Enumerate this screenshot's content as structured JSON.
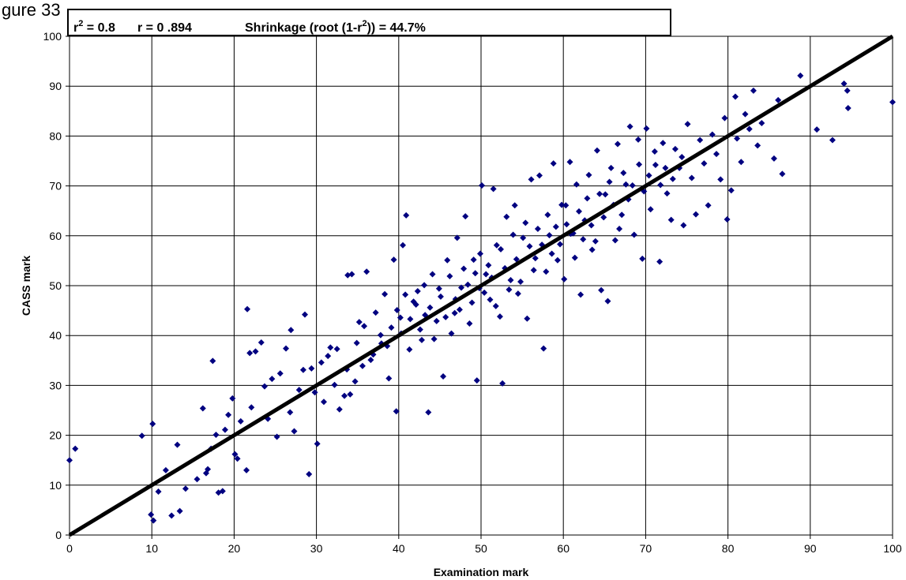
{
  "page": {
    "corner_text": "gure 33"
  },
  "chart_data": {
    "type": "scatter",
    "xlabel": "Examination mark",
    "ylabel": "CASS mark",
    "xlim": [
      0,
      100
    ],
    "ylim": [
      0,
      100
    ],
    "xticks": [
      0,
      10,
      20,
      30,
      40,
      50,
      60,
      70,
      80,
      90,
      100
    ],
    "yticks": [
      0,
      10,
      20,
      30,
      40,
      50,
      60,
      70,
      80,
      90,
      100
    ],
    "grid": true,
    "legend": "none",
    "annotation": {
      "r2_label": "r",
      "r2_exp": "2",
      "r2_value": " = 0.8",
      "r_text": "r = 0 .894",
      "shrink_pre": "Shrinkage (root (1-r",
      "shrink_exp": "2",
      "shrink_post": ")) = 44.7%"
    },
    "reference_line": {
      "from": [
        0,
        0
      ],
      "to": [
        100,
        100
      ],
      "color": "#000000"
    },
    "marker_color": "#000080",
    "series": [
      {
        "points": [
          [
            0,
            15
          ],
          [
            0.7,
            17.3
          ],
          [
            8.8,
            19.9
          ],
          [
            9.9,
            4.1
          ],
          [
            10.1,
            22.3
          ],
          [
            10.2,
            2.9
          ],
          [
            10.8,
            8.7
          ],
          [
            11.7,
            13
          ],
          [
            12.4,
            3.9
          ],
          [
            13.1,
            18.1
          ],
          [
            13.4,
            4.8
          ],
          [
            14.1,
            9.3
          ],
          [
            15.5,
            11.2
          ],
          [
            16.2,
            25.4
          ],
          [
            16.6,
            12.4
          ],
          [
            16.8,
            13.2
          ],
          [
            17.2,
            17.3
          ],
          [
            17.4,
            34.9
          ],
          [
            17.8,
            20.1
          ],
          [
            18.1,
            8.5
          ],
          [
            18.6,
            8.8
          ],
          [
            18.9,
            21.1
          ],
          [
            19.3,
            24.1
          ],
          [
            19.8,
            27.4
          ],
          [
            20.1,
            16.2
          ],
          [
            20.4,
            15.3
          ],
          [
            20.8,
            22.8
          ],
          [
            21.5,
            13
          ],
          [
            21.6,
            45.3
          ],
          [
            21.9,
            36.5
          ],
          [
            22.6,
            36.8
          ],
          [
            23.3,
            38.6
          ],
          [
            24.1,
            23.3
          ],
          [
            24.6,
            31.3
          ],
          [
            25.2,
            19.7
          ],
          [
            26.3,
            37.4
          ],
          [
            26.9,
            41.1
          ],
          [
            27.3,
            20.8
          ],
          [
            28.4,
            33.1
          ],
          [
            28.6,
            44.2
          ],
          [
            29.1,
            12.2
          ],
          [
            29.8,
            28.6
          ],
          [
            30.1,
            18.3
          ],
          [
            30.6,
            34.6
          ],
          [
            31.7,
            37.6
          ],
          [
            32.2,
            30.1
          ],
          [
            32.8,
            25.2
          ],
          [
            33.4,
            27.9
          ],
          [
            33.8,
            52.1
          ],
          [
            34.3,
            52.3
          ],
          [
            34.7,
            30.8
          ],
          [
            35.2,
            42.7
          ],
          [
            35.6,
            33.9
          ],
          [
            36.1,
            52.8
          ],
          [
            36.9,
            36.2
          ],
          [
            37.8,
            40.1
          ],
          [
            38.3,
            48.3
          ],
          [
            38.8,
            31.4
          ],
          [
            39.4,
            55.2
          ],
          [
            39.7,
            24.8
          ],
          [
            40.2,
            43.6
          ],
          [
            40.5,
            58.1
          ],
          [
            40.9,
            64.1
          ],
          [
            41.3,
            37.2
          ],
          [
            41.8,
            46.8
          ],
          [
            42.3,
            48.9
          ],
          [
            42.8,
            39.1
          ],
          [
            43.2,
            44.1
          ],
          [
            43.6,
            24.6
          ],
          [
            44.1,
            52.3
          ],
          [
            44.6,
            42.9
          ],
          [
            45.1,
            47.8
          ],
          [
            45.4,
            31.8
          ],
          [
            45.9,
            55.1
          ],
          [
            46.4,
            40.4
          ],
          [
            46.8,
            44.5
          ],
          [
            47.1,
            59.6
          ],
          [
            47.6,
            49.6
          ],
          [
            48.1,
            63.9
          ],
          [
            48.6,
            42.4
          ],
          [
            49.1,
            55.2
          ],
          [
            49.5,
            31
          ],
          [
            49.8,
            49.5
          ],
          [
            50.1,
            70.1
          ],
          [
            50.6,
            52.3
          ],
          [
            51.1,
            47.2
          ],
          [
            51.5,
            69.4
          ],
          [
            51.9,
            58.1
          ],
          [
            52.3,
            43.8
          ],
          [
            52.6,
            30.4
          ],
          [
            53.1,
            63.8
          ],
          [
            53.6,
            51.1
          ],
          [
            54.1,
            66.1
          ],
          [
            54.5,
            48.4
          ],
          [
            55.1,
            59.6
          ],
          [
            55.6,
            43.4
          ],
          [
            56.1,
            71.3
          ],
          [
            56.6,
            55.5
          ],
          [
            57.1,
            72.1
          ],
          [
            57.6,
            37.4
          ],
          [
            57.9,
            52.8
          ],
          [
            58.3,
            60.1
          ],
          [
            58.8,
            74.5
          ],
          [
            59.3,
            55.1
          ],
          [
            59.8,
            66.2
          ],
          [
            60.1,
            51.3
          ],
          [
            60.4,
            62.3
          ],
          [
            60.8,
            74.8
          ],
          [
            61.2,
            60.5
          ],
          [
            61.6,
            70.3
          ],
          [
            62.1,
            48.2
          ],
          [
            62.6,
            63.1
          ],
          [
            63.1,
            72.2
          ],
          [
            63.5,
            57.2
          ],
          [
            64.1,
            77.1
          ],
          [
            64.6,
            49.1
          ],
          [
            65.1,
            68.3
          ],
          [
            65.4,
            46.9
          ],
          [
            65.8,
            73.6
          ],
          [
            66.3,
            59.1
          ],
          [
            66.6,
            78.4
          ],
          [
            67.1,
            64.2
          ],
          [
            67.6,
            70.3
          ],
          [
            68.1,
            81.9
          ],
          [
            68.6,
            60.2
          ],
          [
            69.1,
            79.3
          ],
          [
            69.6,
            55.4
          ],
          [
            70.1,
            81.5
          ],
          [
            70.6,
            65.3
          ],
          [
            71.2,
            74.2
          ],
          [
            71.7,
            54.8
          ],
          [
            72.1,
            78.6
          ],
          [
            72.6,
            68.5
          ],
          [
            73.1,
            63.2
          ],
          [
            73.6,
            77.4
          ],
          [
            74.1,
            73.6
          ],
          [
            74.6,
            62.1
          ],
          [
            75.1,
            82.4
          ],
          [
            75.6,
            71.6
          ],
          [
            76.1,
            64.3
          ],
          [
            76.6,
            79.2
          ],
          [
            77.1,
            74.5
          ],
          [
            77.6,
            66.1
          ],
          [
            78.1,
            80.3
          ],
          [
            78.6,
            76.4
          ],
          [
            79.1,
            71.3
          ],
          [
            79.6,
            83.6
          ],
          [
            79.9,
            63.3
          ],
          [
            80.4,
            69.1
          ],
          [
            80.9,
            87.9
          ],
          [
            81.1,
            79.5
          ],
          [
            81.6,
            74.8
          ],
          [
            82.1,
            84.4
          ],
          [
            82.6,
            81.4
          ],
          [
            83.1,
            89.1
          ],
          [
            83.6,
            78.1
          ],
          [
            84.1,
            82.6
          ],
          [
            85.6,
            75.5
          ],
          [
            86.1,
            87.2
          ],
          [
            86.6,
            72.4
          ],
          [
            88.8,
            92.1
          ],
          [
            90.8,
            81.3
          ],
          [
            92.7,
            79.2
          ],
          [
            94.1,
            90.5
          ],
          [
            94.5,
            89.1
          ],
          [
            94.6,
            85.6
          ],
          [
            100,
            86.8
          ],
          [
            22.1,
            25.6
          ],
          [
            23.7,
            29.8
          ],
          [
            25.6,
            32.4
          ],
          [
            26.8,
            24.6
          ],
          [
            27.9,
            29.1
          ],
          [
            29.4,
            33.4
          ],
          [
            30.9,
            26.7
          ],
          [
            31.4,
            35.9
          ],
          [
            32.5,
            37.3
          ],
          [
            33.7,
            33.2
          ],
          [
            34.1,
            28.2
          ],
          [
            34.9,
            38.5
          ],
          [
            35.8,
            41.9
          ],
          [
            36.6,
            35.1
          ],
          [
            37.2,
            44.6
          ],
          [
            37.9,
            38.4
          ],
          [
            38.6,
            37.9
          ],
          [
            39.1,
            41.6
          ],
          [
            39.8,
            45.1
          ],
          [
            40.3,
            40.4
          ],
          [
            40.8,
            48.2
          ],
          [
            41.4,
            43.3
          ],
          [
            42.1,
            46.2
          ],
          [
            42.6,
            41.2
          ],
          [
            43.1,
            50.1
          ],
          [
            43.8,
            45.6
          ],
          [
            44.3,
            39.3
          ],
          [
            44.9,
            49.4
          ],
          [
            45.7,
            43.7
          ],
          [
            46.2,
            51.9
          ],
          [
            46.9,
            47.3
          ],
          [
            47.4,
            45.2
          ],
          [
            47.9,
            53.4
          ],
          [
            48.4,
            50.2
          ],
          [
            48.9,
            46.6
          ],
          [
            49.3,
            52.5
          ],
          [
            49.9,
            56.4
          ],
          [
            50.4,
            48.6
          ],
          [
            50.9,
            54.1
          ],
          [
            51.3,
            51.6
          ],
          [
            51.8,
            45.9
          ],
          [
            52.4,
            57.3
          ],
          [
            52.9,
            53.5
          ],
          [
            53.4,
            49.2
          ],
          [
            53.9,
            60.2
          ],
          [
            54.3,
            55.3
          ],
          [
            54.8,
            50.8
          ],
          [
            55.4,
            62.6
          ],
          [
            55.9,
            57.9
          ],
          [
            56.4,
            53.1
          ],
          [
            56.9,
            61.4
          ],
          [
            57.4,
            58.2
          ],
          [
            58.1,
            64.2
          ],
          [
            58.6,
            56.4
          ],
          [
            59.1,
            61.8
          ],
          [
            59.6,
            58.3
          ],
          [
            60.3,
            66.1
          ],
          [
            60.9,
            60.4
          ],
          [
            61.4,
            55.6
          ],
          [
            61.9,
            64.9
          ],
          [
            62.4,
            59.3
          ],
          [
            62.9,
            67.5
          ],
          [
            63.4,
            62.1
          ],
          [
            63.9,
            58.9
          ],
          [
            64.4,
            68.4
          ],
          [
            64.9,
            63.7
          ],
          [
            65.6,
            70.8
          ],
          [
            66.1,
            66.2
          ],
          [
            66.8,
            61.4
          ],
          [
            67.3,
            72.6
          ],
          [
            67.9,
            67.3
          ],
          [
            68.4,
            70.1
          ],
          [
            69.2,
            74.3
          ],
          [
            69.8,
            68.9
          ],
          [
            70.4,
            72.1
          ],
          [
            71.1,
            76.9
          ],
          [
            71.8,
            70.2
          ],
          [
            72.4,
            73.6
          ],
          [
            73.3,
            71.4
          ],
          [
            74.4,
            75.8
          ]
        ]
      }
    ]
  }
}
